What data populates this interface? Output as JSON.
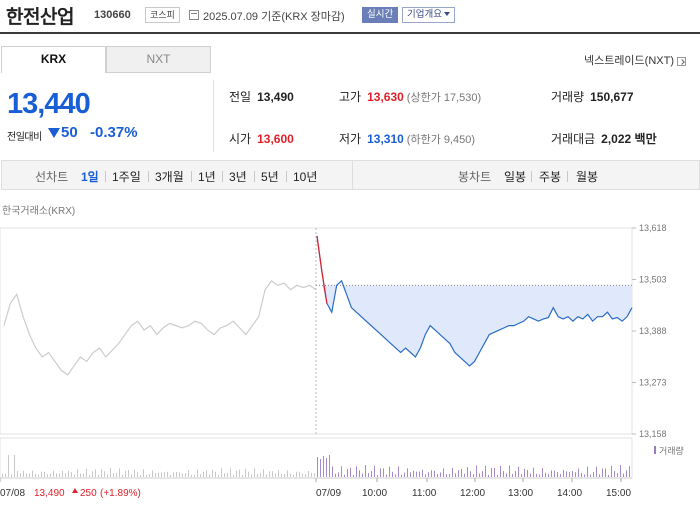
{
  "header": {
    "name": "한전산업",
    "code": "130660",
    "market": "코스피",
    "date_text": "2025.07.09 기준(KRX 장마감)",
    "realtime": "실시간",
    "company_info": "기업개요"
  },
  "tabs": {
    "krx": "KRX",
    "nxt": "NXT"
  },
  "nxt_link": "넥스트레이드(NXT)",
  "price": {
    "current": "13,440",
    "change_label": "전일대비",
    "change": "50",
    "change_pct": "-0.37%"
  },
  "stats": {
    "prev_close": {
      "label": "전일",
      "value": "13,490"
    },
    "high": {
      "label": "고가",
      "value": "13,630",
      "sub": "(상한가 17,530)"
    },
    "volume": {
      "label": "거래량",
      "value": "150,677"
    },
    "open": {
      "label": "시가",
      "value": "13,600"
    },
    "low": {
      "label": "저가",
      "value": "13,310",
      "sub": "(하한가 9,450)"
    },
    "amount": {
      "label": "거래대금",
      "value": "2,022 백만"
    }
  },
  "period": {
    "line_label": "선차트",
    "line_items": [
      "1일",
      "1주일",
      "3개월",
      "1년",
      "3년",
      "5년",
      "10년"
    ],
    "selected": "1일",
    "candle_label": "봉차트",
    "candle_items": [
      "일봉",
      "주봉",
      "월봉"
    ]
  },
  "source": "한국거래소(KRX)",
  "chart_data": {
    "type": "line",
    "ylim": [
      13158,
      13618
    ],
    "yticks": [
      13618,
      13503,
      13388,
      13273,
      13158
    ],
    "prev_close": 13490,
    "x_labels": [
      "07/08",
      "07/09",
      "10:00",
      "11:00",
      "12:00",
      "13:00",
      "14:00",
      "15:00"
    ],
    "volume_label": "거래량",
    "prev_day_summary": {
      "date": "07/08",
      "close": "13,490",
      "change": "250",
      "change_pct": "(+1.89%)"
    },
    "series": [
      {
        "name": "07/08",
        "color": "#cccccc",
        "values": [
          13400,
          13450,
          13470,
          13420,
          13380,
          13350,
          13330,
          13340,
          13320,
          13300,
          13290,
          13310,
          13330,
          13320,
          13340,
          13350,
          13330,
          13345,
          13360,
          13380,
          13400,
          13410,
          13390,
          13400,
          13380,
          13395,
          13405,
          13400,
          13395,
          13400,
          13410,
          13405,
          13390,
          13380,
          13395,
          13400,
          13410,
          13395,
          13380,
          13400,
          13420,
          13480,
          13500,
          13490,
          13495,
          13480,
          13490,
          13485,
          13490,
          13480
        ]
      },
      {
        "name": "07/09",
        "color": "#2a6cc4",
        "values": [
          13600,
          13520,
          13450,
          13430,
          13490,
          13500,
          13470,
          13440,
          13430,
          13420,
          13410,
          13400,
          13390,
          13380,
          13370,
          13360,
          13350,
          13340,
          13350,
          13340,
          13330,
          13350,
          13380,
          13400,
          13390,
          13380,
          13370,
          13360,
          13340,
          13330,
          13320,
          13310,
          13320,
          13340,
          13360,
          13380,
          13385,
          13390,
          13395,
          13400,
          13400,
          13405,
          13410,
          13420,
          13415,
          13410,
          13415,
          13418,
          13440,
          13420,
          13415,
          13420,
          13410,
          13420,
          13415,
          13425,
          13410,
          13420,
          13420,
          13430,
          13415,
          13418,
          13410,
          13420,
          13440
        ]
      }
    ]
  }
}
